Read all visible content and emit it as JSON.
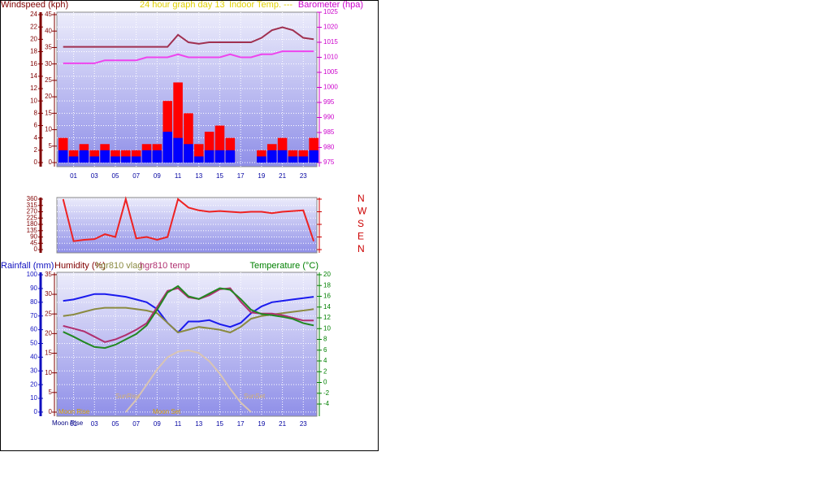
{
  "chart_data": [
    {
      "type": "combo",
      "title": "24 hour graph day  13",
      "subtitle": "Indoor Temp. ---",
      "x": [
        0,
        1,
        2,
        3,
        4,
        5,
        6,
        7,
        8,
        9,
        10,
        11,
        12,
        13,
        14,
        15,
        16,
        17,
        18,
        19,
        20,
        21,
        22,
        23,
        24
      ],
      "xlim": [
        -0.6,
        24.3
      ],
      "xticks": [
        {
          "value": 1,
          "label": "01"
        },
        {
          "value": 3,
          "label": "03"
        },
        {
          "value": 5,
          "label": "05"
        },
        {
          "value": 7,
          "label": "07"
        },
        {
          "value": 9,
          "label": "09"
        },
        {
          "value": 11,
          "label": "11"
        },
        {
          "value": 13,
          "label": "13"
        },
        {
          "value": 15,
          "label": "15"
        },
        {
          "value": 17,
          "label": "17"
        },
        {
          "value": 19,
          "label": "19"
        },
        {
          "value": 21,
          "label": "21"
        },
        {
          "value": 23,
          "label": "23"
        }
      ],
      "axes": [
        {
          "label": "Windspeed (kph)",
          "side": "left",
          "color": "#800000",
          "lim": [
            -0.66,
            24.4
          ],
          "ticks": [
            0,
            2,
            4,
            6,
            8,
            10,
            12,
            14,
            16,
            18,
            20,
            22,
            24
          ]
        },
        {
          "side": "left",
          "color": "#800000",
          "lim": [
            -1.24,
            45.74
          ],
          "ticks": [
            0,
            5,
            10,
            15,
            20,
            25,
            30,
            35,
            40,
            45
          ]
        },
        {
          "label": "Barometer (hpa)",
          "side": "right",
          "color": "#cc00cc",
          "lim": [
            973.65,
            1025
          ],
          "ticks": [
            975,
            980,
            985,
            990,
            995,
            1000,
            1005,
            1010,
            1015,
            1020,
            1025
          ]
        }
      ],
      "series": [
        {
          "type": "bar",
          "axis": 0,
          "color": "#ff0000",
          "values": [
            4,
            2,
            3,
            2,
            3,
            2,
            2,
            2,
            3,
            3,
            10,
            13,
            8,
            3,
            5,
            6,
            4,
            0,
            0,
            2,
            3,
            4,
            2,
            2,
            4
          ]
        },
        {
          "type": "bar",
          "axis": 0,
          "color": "#0000ff",
          "values": [
            2,
            1,
            2,
            1,
            2,
            1,
            1,
            1,
            2,
            2,
            5,
            4,
            3,
            1,
            2,
            2,
            2,
            0,
            0,
            1,
            2,
            2,
            1,
            1,
            2
          ]
        },
        {
          "type": "line",
          "axis": 2,
          "color": "#a03050",
          "values": [
            1013.5,
            1013.5,
            1013.5,
            1013.5,
            1013.5,
            1013.5,
            1013.5,
            1013.5,
            1013.5,
            1013.5,
            1013.5,
            1017.5,
            1015,
            1014.5,
            1015,
            1015,
            1015,
            1015,
            1015,
            1016.5,
            1019,
            1020,
            1019,
            1016.5,
            1016
          ]
        },
        {
          "type": "line",
          "axis": 2,
          "color": "#ee44ee",
          "values": [
            1008,
            1008,
            1008,
            1008,
            1009,
            1009,
            1009,
            1009,
            1010,
            1010,
            1010,
            1011,
            1010,
            1010,
            1010,
            1010,
            1011,
            1010,
            1010,
            1011,
            1011,
            1012,
            1012,
            1012,
            1012
          ]
        }
      ]
    },
    {
      "type": "line",
      "x": [
        0,
        1,
        2,
        3,
        4,
        5,
        6,
        7,
        8,
        9,
        10,
        11,
        12,
        13,
        14,
        15,
        16,
        17,
        18,
        19,
        20,
        21,
        22,
        23,
        24
      ],
      "xlim": [
        -0.6,
        24.3
      ],
      "axes": [
        {
          "side": "left",
          "color": "#800000",
          "lim": [
            -23,
            371.6
          ],
          "ticks": [
            0,
            45,
            90,
            135,
            180,
            225,
            270,
            315,
            360
          ]
        },
        {
          "side": "right",
          "color": "#cc0000",
          "lim": [
            -23,
            371.6
          ],
          "ticks": [
            {
              "value": 360,
              "label": "N"
            },
            {
              "value": 270,
              "label": "W"
            },
            {
              "value": 180,
              "label": "S"
            },
            {
              "value": 90,
              "label": "E"
            },
            {
              "value": 0,
              "label": "N"
            }
          ]
        }
      ],
      "series": [
        {
          "type": "line",
          "axis": 0,
          "color": "#ee2222",
          "values": [
            360,
            60,
            70,
            75,
            110,
            90,
            360,
            80,
            90,
            70,
            90,
            360,
            300,
            280,
            270,
            275,
            270,
            265,
            270,
            270,
            260,
            270,
            275,
            280,
            60
          ]
        }
      ]
    },
    {
      "type": "line",
      "x": [
        0,
        1,
        2,
        3,
        4,
        5,
        6,
        7,
        8,
        9,
        10,
        11,
        12,
        13,
        14,
        15,
        16,
        17,
        18,
        19,
        20,
        21,
        22,
        23,
        24
      ],
      "xlim": [
        -0.6,
        24.3
      ],
      "xticks": [
        {
          "value": 1,
          "label": "01"
        },
        {
          "value": 3,
          "label": "03"
        },
        {
          "value": 5,
          "label": "05"
        },
        {
          "value": 7,
          "label": "07"
        },
        {
          "value": 9,
          "label": "09"
        },
        {
          "value": 11,
          "label": "11"
        },
        {
          "value": 13,
          "label": "13"
        },
        {
          "value": 15,
          "label": "15"
        },
        {
          "value": 17,
          "label": "17"
        },
        {
          "value": 19,
          "label": "19"
        },
        {
          "value": 21,
          "label": "21"
        },
        {
          "value": 23,
          "label": "23"
        }
      ],
      "axes": [
        {
          "label": "Rainfall (mm)",
          "side": "left",
          "color": "#1010c0",
          "lim": [
            -3,
            101.8
          ],
          "ticks": [
            0,
            10,
            20,
            30,
            40,
            50,
            60,
            70,
            80,
            90,
            100
          ]
        },
        {
          "label": "Humidity (%)",
          "side": "left",
          "color": "#800000",
          "lim": [
            -1.04,
            35.6
          ],
          "ticks": [
            0,
            5,
            10,
            15,
            20,
            25,
            30,
            35
          ]
        },
        {
          "label": "Temperature (°C)",
          "side": "right",
          "color": "#008000",
          "lim": [
            -6.26,
            20.45
          ],
          "ticks": [
            -4,
            -2,
            0,
            2,
            4,
            6,
            8,
            10,
            12,
            14,
            16,
            18,
            20
          ]
        }
      ],
      "series": [
        {
          "type": "line",
          "axis": 0,
          "color": "#d8c4b4",
          "values": [
            null,
            null,
            null,
            null,
            null,
            null,
            0,
            9,
            20,
            31,
            40,
            44,
            45,
            43,
            37,
            28,
            17,
            7,
            0,
            null,
            null,
            null,
            null,
            null,
            null
          ]
        },
        {
          "type": "line",
          "axis": 0,
          "color": "#1a1aee",
          "values": [
            81,
            82,
            84,
            86,
            86,
            85,
            84,
            82,
            80,
            75,
            65,
            58,
            66,
            66,
            67,
            64,
            62,
            65,
            72,
            77,
            80,
            81,
            82,
            83,
            84
          ]
        },
        {
          "type": "line",
          "axis": 0,
          "name": "hgr810 vlag",
          "color": "#8a8a40",
          "values": [
            70,
            71,
            73,
            75,
            76,
            76,
            76,
            75,
            74,
            72,
            65,
            58,
            60,
            62,
            61,
            60,
            58,
            62,
            68,
            70,
            71,
            72,
            73,
            74,
            75
          ]
        },
        {
          "type": "line",
          "axis": 2,
          "name": "hgr810 temp",
          "color": "#b03070",
          "values": [
            10.5,
            10,
            9.5,
            8.5,
            7.5,
            8,
            8.8,
            9.8,
            11,
            14,
            17,
            17.5,
            15.8,
            15.5,
            16.2,
            17.3,
            17.5,
            15,
            13,
            12.8,
            12.8,
            12.5,
            12,
            11.5,
            11.5
          ]
        },
        {
          "type": "line",
          "axis": 2,
          "color": "#228822",
          "values": [
            9.4,
            8.5,
            7.5,
            6.6,
            6.4,
            7,
            8,
            9,
            10.6,
            13.5,
            16.7,
            17.9,
            16,
            15.5,
            16.5,
            17.5,
            17.2,
            15.5,
            13.5,
            12.7,
            12.5,
            12.2,
            11.8,
            11,
            10.6
          ]
        }
      ],
      "annotations": [
        "SunRise",
        "SunSet",
        "Moon Set",
        "Moon Rise",
        "Moon Rise"
      ]
    }
  ]
}
